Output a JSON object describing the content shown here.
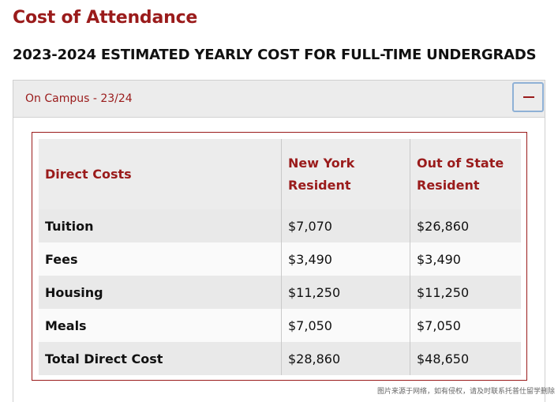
{
  "page": {
    "title": "Cost of Attendance",
    "subtitle": "2023-2024 ESTIMATED YEARLY COST FOR FULL-TIME UNDERGRADS"
  },
  "accordion": {
    "title": "On Campus - 23/24",
    "toggle_icon": "minus-icon"
  },
  "table": {
    "headers": [
      "Direct Costs",
      "New York Resident",
      "Out of State Resident"
    ],
    "rows": [
      {
        "label": "Tuition",
        "ny": "$7,070",
        "oos": "$26,860"
      },
      {
        "label": "Fees",
        "ny": "$3,490",
        "oos": "$3,490"
      },
      {
        "label": "Housing",
        "ny": "$11,250",
        "oos": "$11,250"
      },
      {
        "label": "Meals",
        "ny": "$7,050",
        "oos": "$7,050"
      },
      {
        "label": "Total Direct Cost",
        "ny": "$28,860",
        "oos": "$48,650"
      }
    ]
  },
  "watermark": "图片来源于网络，如有侵权，请及时联系托普仕留学删除",
  "colors": {
    "accent": "#9a1b1b",
    "header_bg": "#ececec",
    "focus_ring": "#8fb1d6"
  }
}
